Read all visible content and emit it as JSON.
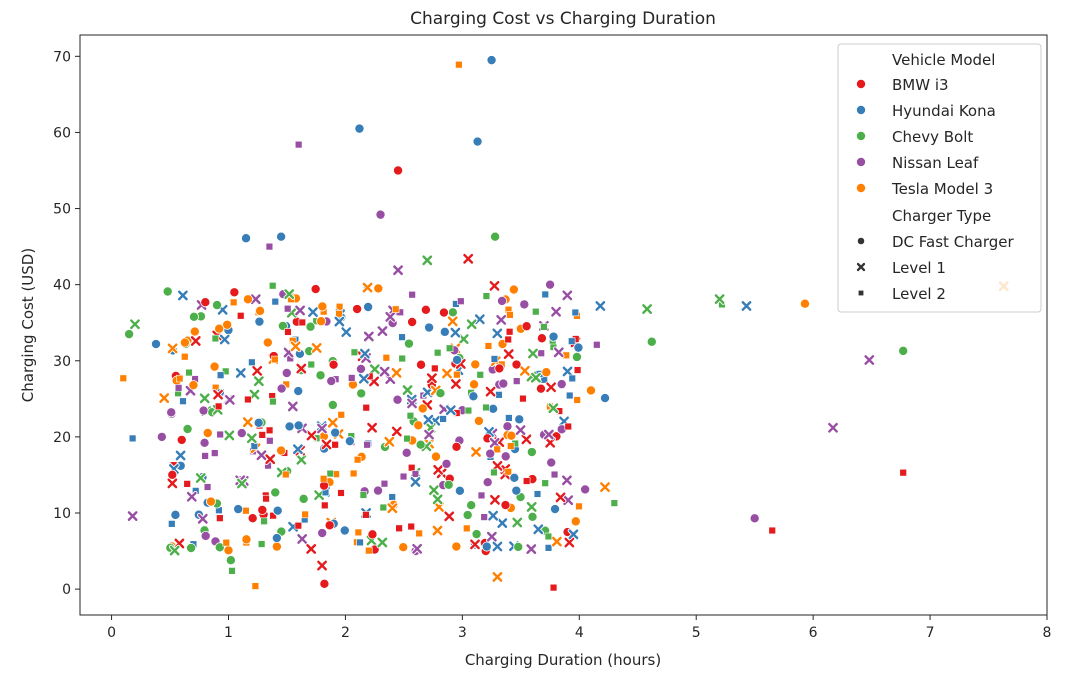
{
  "chart_data": {
    "type": "scatter",
    "title": "Charging Cost vs Charging Duration",
    "xlabel": "Charging Duration (hours)",
    "ylabel": "Charging Cost (USD)",
    "xlim": [
      -0.27,
      8.0
    ],
    "ylim": [
      -3.4,
      72.8
    ],
    "xticks": [
      0,
      1,
      2,
      3,
      4,
      5,
      6,
      7,
      8
    ],
    "yticks": [
      0,
      10,
      20,
      30,
      40,
      50,
      60,
      70
    ],
    "grid": false,
    "legend_position": "upper-right",
    "hue_title": "Vehicle Model",
    "style_title": "Charger Type",
    "series": [
      {
        "name": "BMW i3",
        "color": "#e41a1c"
      },
      {
        "name": "Hyundai Kona",
        "color": "#377eb8"
      },
      {
        "name": "Chevy Bolt",
        "color": "#4daf4a"
      },
      {
        "name": "Nissan Leaf",
        "color": "#984ea3"
      },
      {
        "name": "Tesla Model 3",
        "color": "#ff7f00"
      }
    ],
    "styles": [
      {
        "name": "DC Fast Charger",
        "marker": "circle"
      },
      {
        "name": "Level 1",
        "marker": "x"
      },
      {
        "name": "Level 2",
        "marker": "square"
      }
    ],
    "points": [
      [
        2.45,
        55.0,
        0,
        0
      ],
      [
        1.82,
        0.7,
        0,
        0
      ],
      [
        3.05,
        43.4,
        0,
        1
      ],
      [
        1.8,
        3.1,
        0,
        1
      ],
      [
        5.65,
        7.7,
        0,
        2
      ],
      [
        6.77,
        15.3,
        0,
        2
      ],
      [
        3.78,
        0.2,
        0,
        2
      ],
      [
        1.05,
        39.0,
        0,
        0
      ],
      [
        0.55,
        28.0,
        0,
        0
      ],
      [
        0.6,
        19.6,
        0,
        0
      ],
      [
        0.58,
        6.0,
        0,
        1
      ],
      [
        3.2,
        5.0,
        0,
        0
      ],
      [
        3.9,
        7.5,
        0,
        0
      ],
      [
        2.1,
        36.8,
        0,
        0
      ],
      [
        2.7,
        24.2,
        0,
        1
      ],
      [
        3.55,
        14.2,
        0,
        2
      ],
      [
        1.3,
        9.8,
        0,
        0
      ],
      [
        2.95,
        18.7,
        0,
        0
      ],
      [
        0.72,
        32.6,
        0,
        1
      ],
      [
        2.25,
        5.2,
        0,
        0
      ],
      [
        3.25,
        69.5,
        1,
        0
      ],
      [
        2.12,
        60.5,
        1,
        0
      ],
      [
        3.13,
        58.8,
        1,
        0
      ],
      [
        1.15,
        46.1,
        1,
        0
      ],
      [
        1.45,
        46.3,
        1,
        0
      ],
      [
        0.38,
        32.2,
        1,
        0
      ],
      [
        4.22,
        25.1,
        1,
        0
      ],
      [
        4.18,
        37.2,
        1,
        1
      ],
      [
        5.43,
        37.2,
        1,
        1
      ],
      [
        0.18,
        19.8,
        1,
        2
      ],
      [
        3.3,
        5.6,
        1,
        1
      ],
      [
        3.95,
        7.2,
        1,
        1
      ],
      [
        1.6,
        21.5,
        1,
        0
      ],
      [
        2.85,
        33.8,
        1,
        0
      ],
      [
        3.7,
        27.5,
        1,
        2
      ],
      [
        0.95,
        36.7,
        1,
        1
      ],
      [
        2.4,
        12.1,
        1,
        2
      ],
      [
        1.9,
        8.6,
        1,
        0
      ],
      [
        3.45,
        18.4,
        1,
        0
      ],
      [
        1.2,
        29.8,
        1,
        2
      ],
      [
        3.28,
        46.3,
        2,
        0
      ],
      [
        0.15,
        33.5,
        2,
        0
      ],
      [
        0.2,
        34.8,
        2,
        1
      ],
      [
        4.62,
        32.5,
        2,
        0
      ],
      [
        6.77,
        31.3,
        2,
        0
      ],
      [
        4.58,
        36.8,
        2,
        1
      ],
      [
        5.2,
        38.1,
        2,
        1
      ],
      [
        5.22,
        37.4,
        2,
        2
      ],
      [
        1.02,
        3.8,
        2,
        0
      ],
      [
        1.03,
        2.4,
        2,
        2
      ],
      [
        4.3,
        11.3,
        2,
        2
      ],
      [
        2.7,
        43.2,
        2,
        1
      ],
      [
        0.48,
        39.1,
        2,
        0
      ],
      [
        0.68,
        5.4,
        2,
        0
      ],
      [
        3.98,
        30.5,
        2,
        0
      ],
      [
        1.75,
        35.2,
        2,
        2
      ],
      [
        2.6,
        15.3,
        2,
        1
      ],
      [
        3.6,
        9.5,
        2,
        0
      ],
      [
        2.05,
        20.1,
        2,
        2
      ],
      [
        1.4,
        12.7,
        2,
        0
      ],
      [
        1.6,
        58.4,
        3,
        2
      ],
      [
        2.3,
        49.2,
        3,
        0
      ],
      [
        1.35,
        45.0,
        3,
        2
      ],
      [
        2.45,
        41.9,
        3,
        1
      ],
      [
        0.18,
        9.6,
        3,
        1
      ],
      [
        0.43,
        20.0,
        3,
        0
      ],
      [
        6.48,
        30.1,
        3,
        1
      ],
      [
        6.17,
        21.2,
        3,
        1
      ],
      [
        5.5,
        9.3,
        3,
        0
      ],
      [
        4.15,
        32.1,
        3,
        2
      ],
      [
        4.05,
        13.1,
        3,
        0
      ],
      [
        3.75,
        40.0,
        3,
        0
      ],
      [
        2.6,
        5.0,
        3,
        0
      ],
      [
        1.55,
        24.0,
        3,
        1
      ],
      [
        3.0,
        23.5,
        3,
        0
      ],
      [
        0.8,
        17.5,
        3,
        2
      ],
      [
        2.2,
        33.2,
        3,
        1
      ],
      [
        3.35,
        27.0,
        3,
        0
      ],
      [
        1.1,
        14.3,
        3,
        1
      ],
      [
        3.85,
        21.0,
        3,
        0
      ],
      [
        2.97,
        68.9,
        4,
        2
      ],
      [
        5.93,
        37.5,
        4,
        0
      ],
      [
        7.63,
        39.8,
        4,
        1
      ],
      [
        0.1,
        27.7,
        4,
        2
      ],
      [
        3.3,
        1.6,
        4,
        1
      ],
      [
        1.23,
        0.4,
        4,
        2
      ],
      [
        4.1,
        26.1,
        4,
        0
      ],
      [
        4.22,
        13.4,
        4,
        1
      ],
      [
        3.98,
        35.9,
        4,
        2
      ],
      [
        1.0,
        5.1,
        4,
        0
      ],
      [
        3.97,
        8.9,
        4,
        0
      ],
      [
        0.45,
        25.1,
        4,
        1
      ],
      [
        0.7,
        26.8,
        4,
        0
      ],
      [
        2.35,
        30.4,
        4,
        2
      ],
      [
        3.1,
        26.9,
        4,
        0
      ],
      [
        1.45,
        18.2,
        4,
        0
      ],
      [
        2.8,
        10.8,
        4,
        1
      ],
      [
        1.95,
        37.1,
        4,
        2
      ],
      [
        3.5,
        34.2,
        4,
        0
      ],
      [
        0.85,
        11.5,
        4,
        0
      ]
    ],
    "cluster": {
      "x_range": [
        0.5,
        4.0
      ],
      "y_range": [
        5.0,
        40.0
      ],
      "count_per_series": 100,
      "seed": 12345
    }
  }
}
